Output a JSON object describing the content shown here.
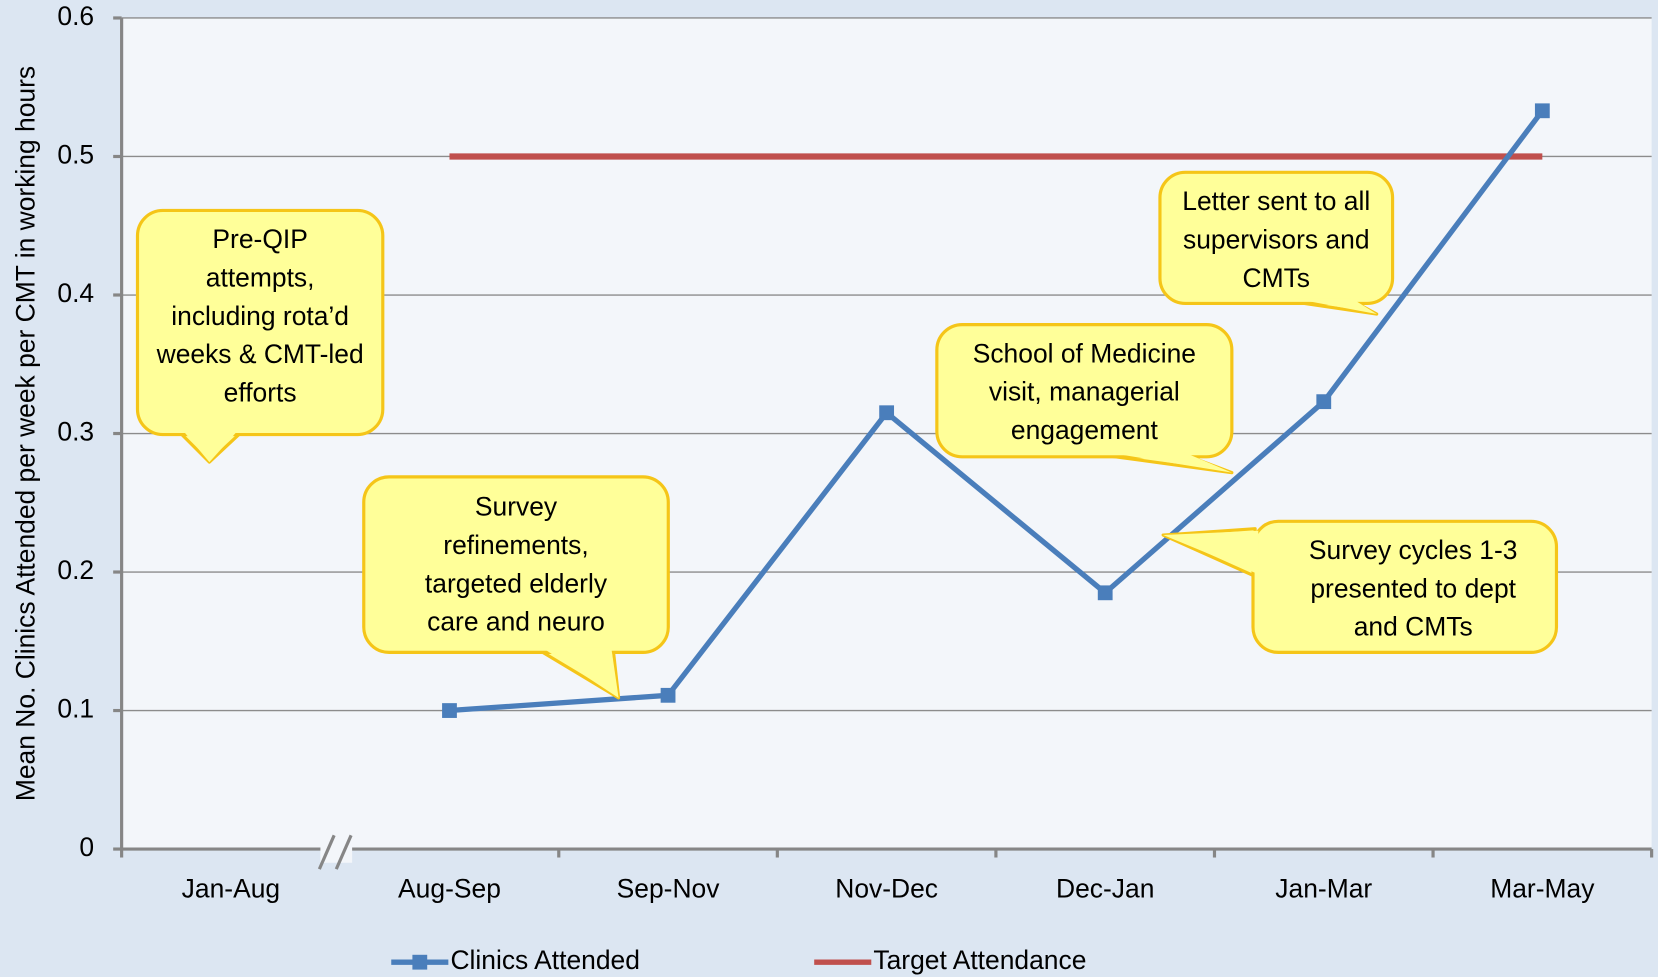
{
  "chart_data": {
    "type": "line",
    "y_label": "Mean No. Clinics Attended per week per CMT in working hours",
    "categories": [
      "Jan-Aug",
      "Aug-Sep",
      "Sep-Nov",
      "Nov-Dec",
      "Dec-Jan",
      "Jan-Mar",
      "Mar-May"
    ],
    "series": [
      {
        "name": "Clinics Attended",
        "color": "#4a7ebb",
        "values": [
          null,
          0.1,
          0.111,
          0.315,
          0.185,
          0.323,
          0.533
        ]
      },
      {
        "name": "Target Attendance",
        "color": "#c0504d",
        "values": [
          null,
          0.5,
          0.5,
          0.5,
          0.5,
          0.5,
          0.5
        ]
      }
    ],
    "ylim": [
      0,
      0.6
    ],
    "yticks": [
      0,
      0.1,
      0.2,
      0.3,
      0.4,
      0.5,
      0.6
    ],
    "grid": true,
    "legend": "bottom",
    "annotations": [
      {
        "lines": [
          "Pre-QIP",
          "attempts,",
          "including rota’d",
          "weeks & CMT-led",
          "efforts"
        ]
      },
      {
        "lines": [
          "Survey",
          "refinements,",
          "targeted elderly",
          "care and neuro"
        ]
      },
      {
        "lines": [
          "School of Medicine",
          "visit, managerial",
          "engagement"
        ]
      },
      {
        "lines": [
          "Letter sent to all",
          "supervisors and",
          "CMTs"
        ]
      },
      {
        "lines": [
          "Survey cycles 1-3",
          "presented to dept",
          "and CMTs"
        ]
      }
    ]
  }
}
